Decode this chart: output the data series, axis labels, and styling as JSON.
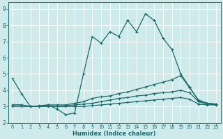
{
  "xlabel": "Humidex (Indice chaleur)",
  "xlim": [
    -0.5,
    23.5
  ],
  "ylim": [
    2.0,
    9.4
  ],
  "xticks": [
    0,
    1,
    2,
    3,
    4,
    5,
    6,
    7,
    8,
    9,
    10,
    11,
    12,
    13,
    14,
    15,
    16,
    17,
    18,
    19,
    20,
    21,
    22,
    23
  ],
  "yticks": [
    2,
    3,
    4,
    5,
    6,
    7,
    8,
    9
  ],
  "bg_color": "#ceeaea",
  "line_color": "#1a6b6b",
  "line1_y": [
    4.7,
    3.8,
    3.0,
    3.0,
    3.1,
    2.85,
    2.5,
    2.6,
    5.0,
    7.3,
    6.9,
    7.6,
    7.3,
    8.3,
    7.6,
    8.7,
    8.3,
    7.2,
    6.5,
    5.0,
    4.2,
    3.35,
    3.2,
    3.15
  ],
  "line2_y": [
    3.1,
    3.1,
    3.0,
    3.05,
    3.1,
    3.1,
    3.1,
    3.2,
    3.3,
    3.5,
    3.6,
    3.65,
    3.8,
    3.9,
    4.05,
    4.2,
    4.35,
    4.5,
    4.65,
    4.9,
    4.15,
    3.4,
    3.2,
    3.15
  ],
  "line3_y": [
    3.1,
    3.1,
    3.0,
    3.0,
    3.05,
    3.0,
    3.05,
    3.1,
    3.15,
    3.2,
    3.3,
    3.4,
    3.5,
    3.55,
    3.65,
    3.7,
    3.8,
    3.85,
    3.9,
    4.0,
    3.85,
    3.3,
    3.15,
    3.1
  ],
  "line4_y": [
    3.0,
    3.0,
    3.0,
    3.0,
    3.0,
    3.0,
    3.0,
    3.0,
    3.0,
    3.05,
    3.1,
    3.15,
    3.2,
    3.25,
    3.3,
    3.35,
    3.4,
    3.45,
    3.5,
    3.55,
    3.45,
    3.15,
    3.1,
    3.1
  ]
}
